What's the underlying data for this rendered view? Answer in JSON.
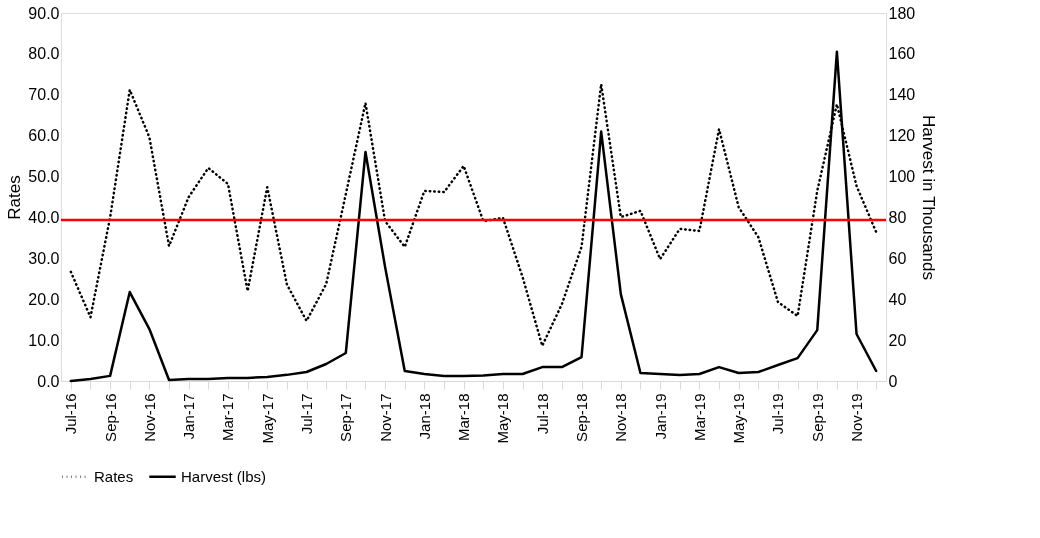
{
  "chart_data": {
    "type": "line",
    "categories": [
      "Jul-16",
      null,
      "Sep-16",
      null,
      "Nov-16",
      null,
      "Jan-17",
      null,
      "Mar-17",
      null,
      "May-17",
      null,
      "Jul-17",
      null,
      "Sep-17",
      null,
      "Nov-17",
      null,
      "Jan-18",
      null,
      "Mar-18",
      null,
      "May-18",
      null,
      "Jul-18",
      null,
      "Sep-18",
      null,
      "Nov-18",
      null,
      "Jan-19",
      null,
      "Mar-19",
      null,
      "May-19",
      null,
      "Jul-19",
      null,
      "Sep-19",
      null,
      "Nov-19",
      null
    ],
    "series": [
      {
        "name": "Rates",
        "color": "#000000",
        "line_style": "dotted",
        "values": [
          26.7,
          15.6,
          40.0,
          71.2,
          59.6,
          33.0,
          45.0,
          52.1,
          48.2,
          22.0,
          47.4,
          23.6,
          14.7,
          23.7,
          45.7,
          68.0,
          39.1,
          32.8,
          46.5,
          46.2,
          52.6,
          39.1,
          39.9,
          25.4,
          8.6,
          18.8,
          32.8,
          72.6,
          40.1,
          41.6,
          29.8,
          37.2,
          36.7,
          61.6,
          42.5,
          35.2,
          19.3,
          15.9,
          46.5,
          67.7,
          47.7,
          36.4
        ]
      },
      {
        "name": "Harvest (lbs)",
        "color": "#000000",
        "line_style": "solid",
        "axis": "y2",
        "values": [
          0,
          1,
          2.5,
          43.5,
          25.4,
          0.5,
          1,
          1,
          1.5,
          1.5,
          2,
          3,
          4.4,
          8.3,
          13.7,
          112,
          55.7,
          4.9,
          3.4,
          2.5,
          2.5,
          2.7,
          3.4,
          3.4,
          6.8,
          6.8,
          11.7,
          122,
          42.5,
          3.9,
          3.4,
          2.9,
          3.4,
          6.8,
          3.9,
          4.4,
          7.8,
          11.2,
          24.9,
          161,
          23,
          4.9
        ]
      }
    ],
    "ylabel": "Rates",
    "y2label": "Harvest in Thousands",
    "ylim": [
      0,
      90
    ],
    "yticks": [
      {
        "value": 0,
        "label": "0.0"
      },
      {
        "value": 10,
        "label": "10.0"
      },
      {
        "value": 20,
        "label": "20.0"
      },
      {
        "value": 30,
        "label": "30.0"
      },
      {
        "value": 40,
        "label": "40.0"
      },
      {
        "value": 50,
        "label": "50.0"
      },
      {
        "value": 60,
        "label": "60.0"
      },
      {
        "value": 70,
        "label": "70.0"
      },
      {
        "value": 80,
        "label": "80.0"
      },
      {
        "value": 90,
        "label": "90.0"
      }
    ],
    "y2lim": [
      0,
      180
    ],
    "y2ticks": [
      0,
      20,
      40,
      60,
      80,
      100,
      120,
      140,
      160,
      180
    ],
    "ref_lines": [
      {
        "axis": "y",
        "value": 39.4,
        "color": "#ff0000"
      }
    ],
    "grid": false,
    "legend": "bottom"
  }
}
